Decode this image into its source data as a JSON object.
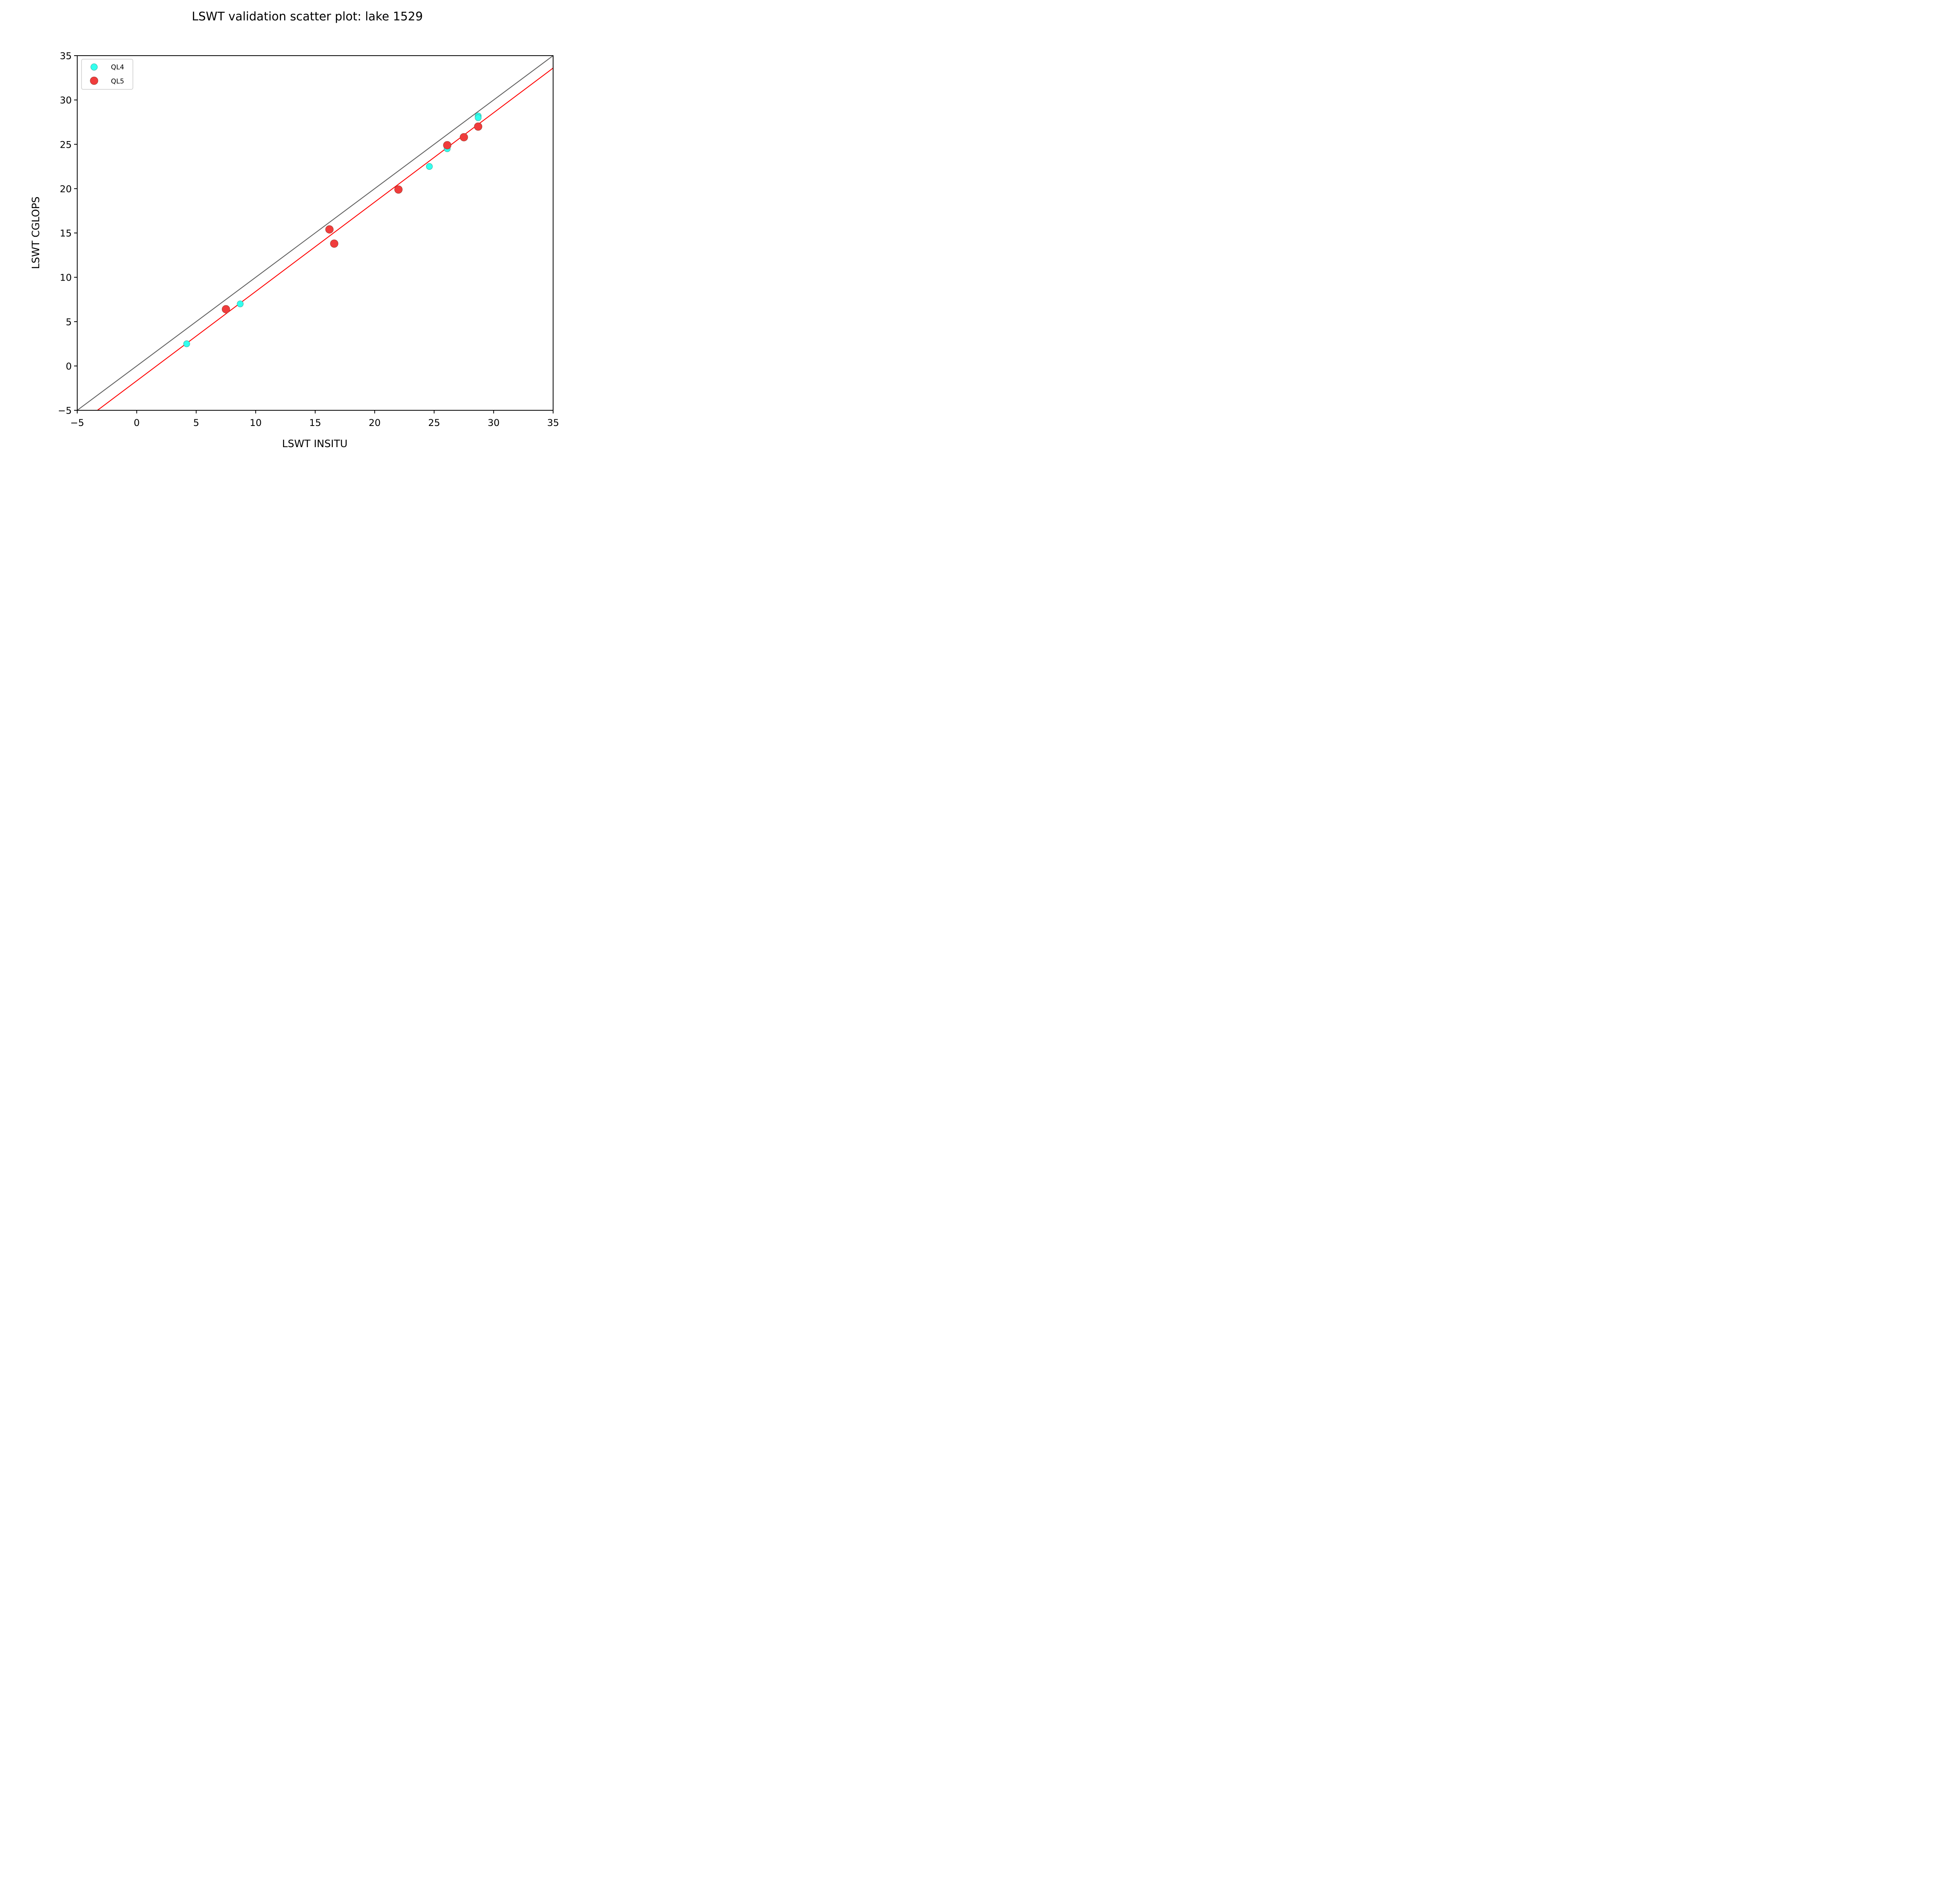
{
  "chart_data": {
    "type": "scatter",
    "title": "LSWT validation scatter plot: lake 1529",
    "xlabel": "LSWT INSITU",
    "ylabel": "LSWT CGLOPS",
    "xlim": [
      -5,
      35
    ],
    "ylim": [
      -5,
      35
    ],
    "xticks": [
      -5,
      0,
      5,
      10,
      15,
      20,
      25,
      30,
      35
    ],
    "yticks": [
      -5,
      0,
      5,
      10,
      15,
      20,
      25,
      30,
      35
    ],
    "xtick_labels": [
      "−5",
      "0",
      "5",
      "10",
      "15",
      "20",
      "25",
      "30",
      "35"
    ],
    "ytick_labels": [
      "−5",
      "0",
      "5",
      "10",
      "15",
      "20",
      "25",
      "30",
      "35"
    ],
    "grid": false,
    "legend_position": "top-left",
    "series": [
      {
        "name": "QL4",
        "color": "#33ffee",
        "points": [
          [
            4.2,
            2.5
          ],
          [
            8.7,
            7.0
          ],
          [
            24.6,
            22.5
          ],
          [
            26.1,
            24.5
          ],
          [
            28.7,
            28.2
          ],
          [
            28.7,
            28.0
          ]
        ]
      },
      {
        "name": "QL5",
        "color": "#f03c3c",
        "points": [
          [
            7.5,
            6.4
          ],
          [
            16.2,
            15.4
          ],
          [
            16.6,
            13.8
          ],
          [
            22.0,
            19.9
          ],
          [
            26.1,
            24.9
          ],
          [
            27.5,
            25.8
          ],
          [
            28.7,
            27.0
          ]
        ]
      }
    ],
    "lines": [
      {
        "kind": "identity",
        "color": "#606060",
        "from": [
          -5,
          -5
        ],
        "to": [
          35,
          35
        ]
      },
      {
        "kind": "fit",
        "color": "#ff0000",
        "from": [
          -3.3,
          -5
        ],
        "to": [
          35,
          33.6
        ]
      }
    ]
  }
}
